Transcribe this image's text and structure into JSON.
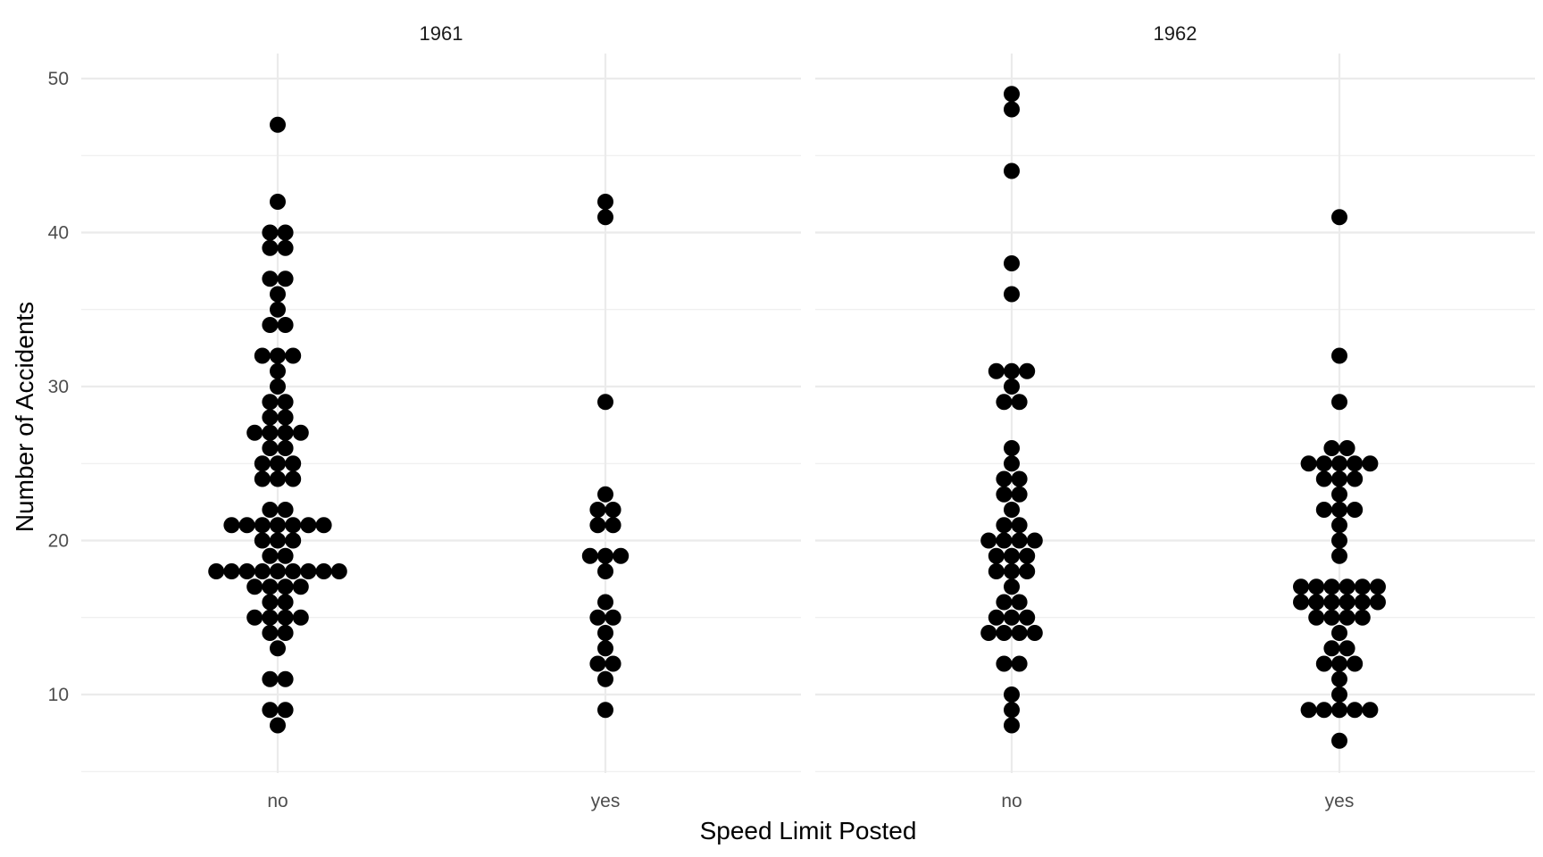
{
  "chart_data": {
    "type": "scatter",
    "subtype": "beeswarm",
    "xlabel": "Speed Limit Posted",
    "ylabel": "Number of Accidents",
    "ylim": [
      5,
      52
    ],
    "yticks": [
      10,
      20,
      30,
      40,
      50
    ],
    "categories": [
      "no",
      "yes"
    ],
    "grid": true,
    "legend": "none",
    "point_color": "#000000",
    "panels": [
      {
        "name": "1961",
        "series": [
          {
            "category": "no",
            "values": [
              8,
              9,
              9,
              11,
              11,
              13,
              14,
              14,
              15,
              15,
              15,
              15,
              16,
              16,
              17,
              17,
              17,
              17,
              18,
              18,
              18,
              18,
              18,
              18,
              18,
              18,
              18,
              19,
              19,
              20,
              20,
              20,
              21,
              21,
              21,
              21,
              21,
              21,
              21,
              22,
              22,
              24,
              24,
              24,
              25,
              25,
              25,
              26,
              26,
              27,
              27,
              27,
              27,
              28,
              28,
              29,
              29,
              30,
              31,
              32,
              32,
              32,
              34,
              34,
              35,
              36,
              37,
              37,
              39,
              39,
              40,
              40,
              42,
              47
            ]
          },
          {
            "category": "yes",
            "values": [
              9,
              11,
              12,
              12,
              13,
              14,
              15,
              15,
              16,
              18,
              19,
              19,
              19,
              21,
              21,
              22,
              22,
              23,
              29,
              41,
              42
            ]
          }
        ]
      },
      {
        "name": "1962",
        "series": [
          {
            "category": "no",
            "values": [
              8,
              9,
              10,
              12,
              12,
              14,
              14,
              14,
              14,
              15,
              15,
              15,
              16,
              16,
              17,
              18,
              18,
              18,
              19,
              19,
              19,
              20,
              20,
              20,
              20,
              21,
              21,
              22,
              23,
              23,
              24,
              24,
              25,
              26,
              29,
              29,
              30,
              31,
              31,
              31,
              36,
              38,
              44,
              48,
              49
            ]
          },
          {
            "category": "yes",
            "values": [
              7,
              9,
              9,
              9,
              9,
              9,
              10,
              11,
              12,
              12,
              12,
              13,
              13,
              14,
              15,
              15,
              15,
              15,
              16,
              16,
              16,
              16,
              16,
              16,
              17,
              17,
              17,
              17,
              17,
              17,
              19,
              20,
              21,
              22,
              22,
              22,
              23,
              24,
              24,
              24,
              25,
              25,
              25,
              25,
              25,
              26,
              26,
              29,
              32,
              41
            ]
          }
        ]
      }
    ]
  }
}
